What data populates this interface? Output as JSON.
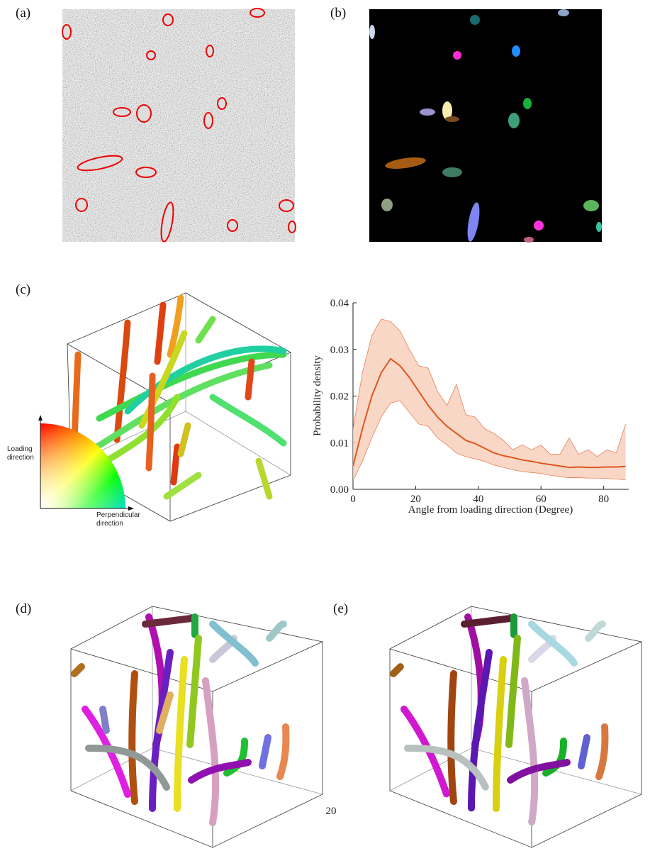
{
  "panels": {
    "a": "(a)",
    "b": "(b)",
    "c": "(c)",
    "d": "(d)",
    "e": "(e)"
  },
  "color_key": {
    "vertical": "Loading direction",
    "horizontal": "Perpendicular direction"
  },
  "page_number": "20",
  "chart_data": {
    "type": "line",
    "x_label": "Angle from loading direction (Degree)",
    "y_label": "Probability density",
    "x": [
      0,
      3,
      6,
      9,
      12,
      15,
      18,
      21,
      24,
      27,
      30,
      33,
      36,
      39,
      42,
      45,
      48,
      51,
      54,
      57,
      60,
      63,
      66,
      69,
      72,
      75,
      78,
      81,
      84,
      87
    ],
    "series": [
      {
        "color": "#e0561e",
        "band_color": "#f6cdb8",
        "values": [
          0.005,
          0.013,
          0.02,
          0.025,
          0.028,
          0.0265,
          0.024,
          0.021,
          0.018,
          0.0155,
          0.0135,
          0.012,
          0.0105,
          0.0098,
          0.0088,
          0.0078,
          0.0072,
          0.0068,
          0.0063,
          0.006,
          0.0056,
          0.0053,
          0.005,
          0.0047,
          0.0048,
          0.0047,
          0.0047,
          0.0048,
          0.0048,
          0.0049
        ],
        "upper": [
          0.013,
          0.025,
          0.033,
          0.0365,
          0.036,
          0.034,
          0.03,
          0.0265,
          0.026,
          0.021,
          0.018,
          0.0225,
          0.016,
          0.0155,
          0.013,
          0.012,
          0.0105,
          0.0085,
          0.0095,
          0.0085,
          0.0095,
          0.0075,
          0.0075,
          0.011,
          0.0075,
          0.0085,
          0.007,
          0.0085,
          0.0078,
          0.014
        ],
        "lower": [
          0.0018,
          0.006,
          0.011,
          0.0155,
          0.0185,
          0.019,
          0.0165,
          0.014,
          0.0135,
          0.011,
          0.0095,
          0.0078,
          0.007,
          0.0065,
          0.006,
          0.0052,
          0.0047,
          0.0042,
          0.0038,
          0.0036,
          0.0034,
          0.003,
          0.0027,
          0.0025,
          0.0025,
          0.0024,
          0.0024,
          0.0023,
          0.0022,
          0.002
        ]
      }
    ],
    "xlim": [
      0,
      88
    ],
    "xticks": [
      0,
      20,
      40,
      60,
      80
    ],
    "ylim": [
      0,
      0.04
    ],
    "yticks": [
      {
        "value": 0,
        "label": "0.00"
      },
      0.01,
      0.02,
      0.03,
      0.04
    ]
  }
}
